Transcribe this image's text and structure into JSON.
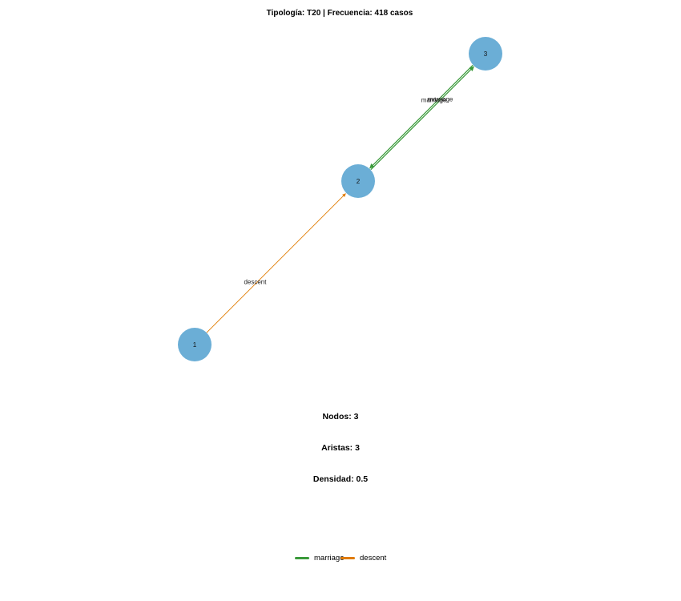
{
  "title": "Tipología: T20 | Frecuencia: 418 casos",
  "colors": {
    "node": "#6baed6",
    "marriage": "#3a9a3a",
    "descent": "#e07b00"
  },
  "graph": {
    "nodes": [
      {
        "id": "1",
        "label": "1"
      },
      {
        "id": "2",
        "label": "2"
      },
      {
        "id": "3",
        "label": "3"
      }
    ],
    "edges": [
      {
        "from": "1",
        "to": "2",
        "type": "descent",
        "label": "descent"
      },
      {
        "from": "2",
        "to": "3",
        "type": "marriage",
        "label": "marriage"
      },
      {
        "from": "3",
        "to": "2",
        "type": "marriage",
        "label": "marriage"
      }
    ]
  },
  "stats": {
    "nodes": "Nodos: 3",
    "edges": "Aristas: 3",
    "density": "Densidad: 0.5"
  },
  "legend": [
    {
      "label": "marriage",
      "type": "marriage"
    },
    {
      "label": "descent",
      "type": "descent"
    }
  ]
}
